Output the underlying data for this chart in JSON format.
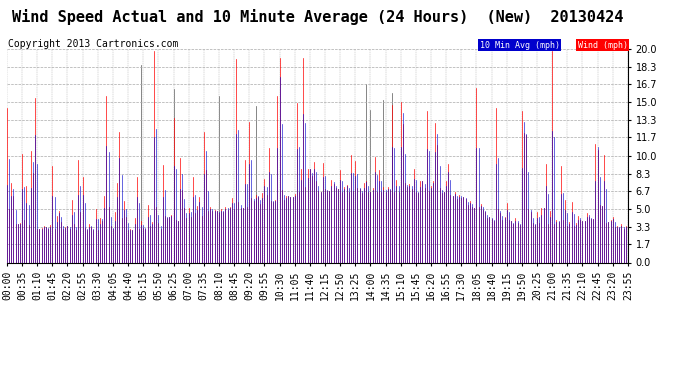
{
  "title": "Wind Speed Actual and 10 Minute Average (24 Hours)  (New)  20130424",
  "copyright": "Copyright 2013 Cartronics.com",
  "legend_10min_label": "10 Min Avg (mph)",
  "legend_wind_label": "Wind (mph)",
  "legend_10min_bg": "#0000cc",
  "legend_wind_bg": "#ff0000",
  "wind_color": "#ff0000",
  "avg_color": "#0000cc",
  "background_color": "#ffffff",
  "plot_bg_color": "#ffffff",
  "grid_color": "#aaaaaa",
  "y_ticks": [
    0.0,
    1.7,
    3.3,
    5.0,
    6.7,
    8.3,
    10.0,
    11.7,
    13.3,
    15.0,
    16.7,
    18.3,
    20.0
  ],
  "ylim": [
    0.0,
    20.0
  ],
  "num_points": 288,
  "title_fontsize": 11,
  "copyright_fontsize": 7,
  "tick_fontsize": 7,
  "x_tick_step_minutes": 35,
  "data_interval_minutes": 5
}
